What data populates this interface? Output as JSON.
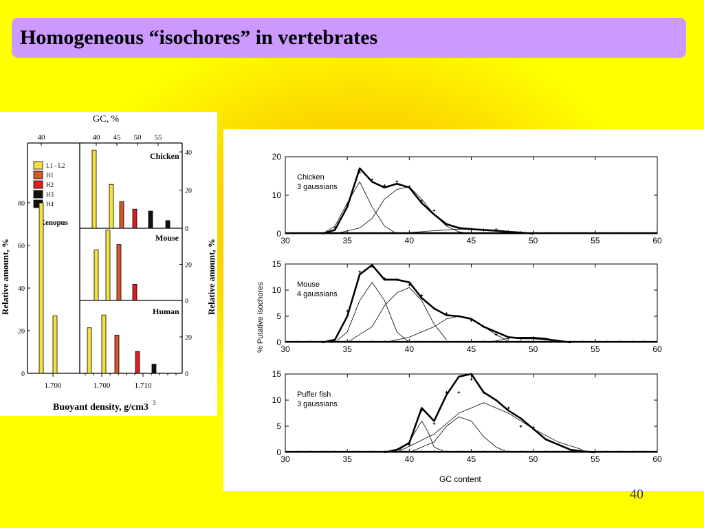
{
  "slide": {
    "title": "Homogeneous “isochores” in vertebrates",
    "number": "40"
  },
  "colors": {
    "L1-L2": "#f5e042",
    "H1": "#d6582a",
    "H2": "#d81e1e",
    "H3": "#111111",
    "H4": "#111111"
  },
  "chart_data": [
    {
      "type": "bar",
      "title": "",
      "top_axis_label": "GC, %",
      "xlabel": "Buoyant density, g/cm3",
      "ylabel": "Relative amount, %",
      "ylabel_right": "Relative amount, %",
      "legend": [
        "L1 - L2",
        "H1",
        "H2",
        "H3",
        "H4"
      ],
      "legend_position": "top-left",
      "panels": [
        {
          "name": "Xenopus",
          "ylim": [
            0,
            100
          ],
          "yticks": [
            "0",
            "20",
            "40",
            "60",
            "80"
          ],
          "top_ticks": [
            "40"
          ],
          "bottom_ticks": [
            "1.700"
          ],
          "bars": [
            {
              "class": "L1-L2",
              "value": 80
            },
            {
              "class": "L1-L2",
              "value": 27
            }
          ]
        },
        {
          "name": "Chicken",
          "ylim": [
            0,
            40
          ],
          "yticks": [
            "0",
            "20",
            "40"
          ],
          "top_ticks": [
            "40",
            "45",
            "50",
            "55"
          ],
          "bars": [
            {
              "class": "L1-L2",
              "value": 41
            },
            {
              "class": "L1-L2",
              "value": 23
            },
            {
              "class": "H1",
              "value": 14
            },
            {
              "class": "H2",
              "value": 10
            },
            {
              "class": "H3",
              "value": 9
            },
            {
              "class": "H4",
              "value": 4
            }
          ]
        },
        {
          "name": "Mouse",
          "ylim": [
            0,
            40
          ],
          "yticks": [
            "0",
            "20"
          ],
          "bars": [
            {
              "class": "L1-L2",
              "value": 28
            },
            {
              "class": "L1-L2",
              "value": 39
            },
            {
              "class": "H1",
              "value": 31
            },
            {
              "class": "H2",
              "value": 9
            }
          ]
        },
        {
          "name": "Human",
          "ylim": [
            0,
            40
          ],
          "yticks": [
            "0",
            "20"
          ],
          "bottom_ticks": [
            "1.700",
            "1.710"
          ],
          "bars": [
            {
              "class": "L1-L2",
              "value": 25
            },
            {
              "class": "L1-L2",
              "value": 32
            },
            {
              "class": "H1",
              "value": 21
            },
            {
              "class": "H2",
              "value": 12
            },
            {
              "class": "H3",
              "value": 5
            }
          ]
        }
      ]
    },
    {
      "type": "line",
      "title": "",
      "xlabel": "GC content",
      "ylabel": "% Putative isochores",
      "xlim": [
        30,
        60
      ],
      "xticks": [
        "30",
        "35",
        "40",
        "45",
        "50",
        "55",
        "60"
      ],
      "grid": false,
      "panels": [
        {
          "label": "Chicken",
          "sublabel": "3 gaussians",
          "ylim": [
            0,
            20
          ],
          "yticks": [
            "0",
            "10",
            "20"
          ],
          "series": [
            {
              "role": "total",
              "x": [
                33,
                34,
                35,
                36,
                37,
                38,
                39,
                40,
                41,
                42,
                43,
                44,
                45,
                46,
                47,
                48,
                49,
                50
              ],
              "y": [
                0,
                1,
                7,
                17,
                13.5,
                12,
                13,
                12,
                8,
                5,
                2.5,
                1.5,
                1.2,
                1.0,
                0.8,
                0.5,
                0.3,
                0
              ]
            },
            {
              "role": "component",
              "x": [
                33,
                34,
                35,
                36,
                37,
                38,
                39
              ],
              "y": [
                0,
                2,
                8,
                13.5,
                7,
                2,
                0
              ]
            },
            {
              "role": "component",
              "x": [
                34,
                36,
                37,
                38,
                39,
                40,
                41,
                42,
                43,
                44,
                45
              ],
              "y": [
                0,
                1.5,
                4,
                9,
                11.5,
                12.2,
                9,
                5,
                2,
                0.5,
                0
              ]
            },
            {
              "role": "component",
              "x": [
                38,
                40,
                42,
                44,
                46,
                48,
                50
              ],
              "y": [
                0,
                0.3,
                0.8,
                1.2,
                0.9,
                0.4,
                0
              ]
            },
            {
              "role": "observed",
              "x": [
                34,
                35,
                36,
                37,
                38,
                39,
                40,
                41,
                42,
                43,
                44,
                45,
                46,
                47,
                48,
                49
              ],
              "y": [
                1.5,
                7.5,
                16,
                14,
                12.5,
                13.5,
                12.2,
                8.5,
                6,
                2.5,
                1.5,
                1.2,
                1.0,
                1.1,
                0.6,
                0.3
              ]
            }
          ]
        },
        {
          "label": "Mouse",
          "sublabel": "4 gaussians",
          "ylim": [
            0,
            15
          ],
          "yticks": [
            "0",
            "5",
            "10",
            "15"
          ],
          "series": [
            {
              "role": "total",
              "x": [
                33,
                34,
                35,
                36,
                37,
                38,
                39,
                40,
                41,
                42,
                43,
                44,
                45,
                46,
                47,
                48,
                49,
                50,
                51,
                52,
                53
              ],
              "y": [
                0,
                0.5,
                5,
                13,
                14.8,
                12,
                12,
                11.5,
                8.5,
                6.5,
                5.2,
                5,
                4.5,
                3,
                2,
                1,
                0.8,
                0.8,
                0.6,
                0.3,
                0
              ]
            },
            {
              "role": "component",
              "x": [
                34,
                35,
                36,
                37,
                38,
                39,
                40
              ],
              "y": [
                0,
                2,
                8,
                11.5,
                8,
                2,
                0
              ]
            },
            {
              "role": "component",
              "x": [
                35,
                37,
                38,
                39,
                40,
                41,
                42,
                43
              ],
              "y": [
                0,
                3,
                7,
                9.5,
                10.5,
                8,
                3.5,
                0.5
              ]
            },
            {
              "role": "component",
              "x": [
                38,
                40,
                42,
                43,
                44,
                45,
                46,
                47,
                48
              ],
              "y": [
                0,
                1,
                3,
                4.5,
                5,
                4.5,
                3,
                1.5,
                0.2
              ]
            },
            {
              "role": "component",
              "x": [
                46,
                47,
                48,
                49,
                50,
                51,
                52,
                53
              ],
              "y": [
                0,
                0.3,
                0.8,
                1,
                1,
                0.8,
                0.3,
                0
              ]
            },
            {
              "role": "observed",
              "x": [
                35,
                36,
                37,
                38,
                39,
                40,
                41,
                42,
                43,
                44,
                45,
                46,
                47,
                48,
                49,
                50
              ],
              "y": [
                6,
                13.5,
                14.5,
                12.2,
                12,
                11,
                9,
                6.5,
                5.5,
                5,
                4.2,
                3,
                1.5,
                0.8,
                0.7,
                0.9
              ]
            }
          ]
        },
        {
          "label": "Puffer fish",
          "sublabel": "3 gaussians",
          "ylim": [
            0,
            15
          ],
          "yticks": [
            "0",
            "5",
            "10",
            "15"
          ],
          "series": [
            {
              "role": "total",
              "x": [
                38,
                39,
                40,
                41,
                42,
                43,
                44,
                45,
                46,
                47,
                48,
                49,
                50,
                51,
                52,
                53,
                54,
                55
              ],
              "y": [
                0,
                0.5,
                1.8,
                8.5,
                6,
                11,
                14.5,
                15,
                11.5,
                10,
                8,
                6.5,
                4.5,
                2.5,
                1.5,
                0.5,
                0.2,
                0
              ]
            },
            {
              "role": "component",
              "x": [
                39,
                40,
                41,
                41.5,
                42,
                43
              ],
              "y": [
                0,
                2,
                6,
                4,
                1,
                0
              ]
            },
            {
              "role": "component",
              "x": [
                40,
                42,
                43,
                44,
                45,
                46,
                47,
                48
              ],
              "y": [
                0,
                2,
                5,
                6.8,
                6,
                3,
                1,
                0
              ]
            },
            {
              "role": "component",
              "x": [
                39,
                42,
                44,
                46,
                48,
                50,
                52,
                54
              ],
              "y": [
                0,
                3.5,
                7.5,
                9.5,
                7.5,
                4.5,
                2,
                0.5
              ]
            },
            {
              "role": "observed",
              "x": [
                40,
                41,
                42,
                43,
                44,
                45,
                46,
                47,
                48,
                49,
                50
              ],
              "y": [
                1.5,
                8,
                5.5,
                11.5,
                11.5,
                14,
                11.5,
                10,
                8.5,
                5,
                4.8
              ]
            }
          ]
        }
      ]
    }
  ]
}
